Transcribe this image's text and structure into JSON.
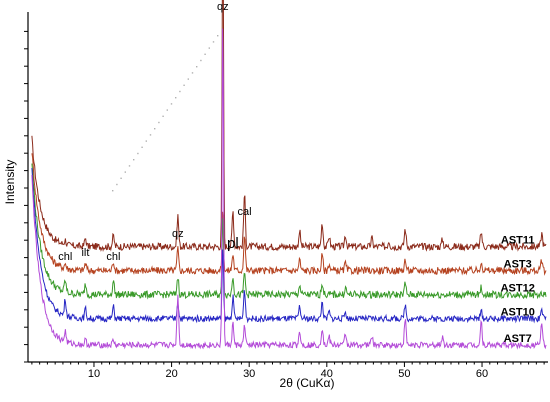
{
  "chart_data": {
    "type": "line",
    "title": "",
    "xlabel": "2θ (CuKα)",
    "ylabel": "Intensity",
    "xlim": [
      1.5,
      68.5
    ],
    "x_ticks": [
      10,
      20,
      30,
      40,
      50,
      60
    ],
    "y_ticks_labeled": false,
    "grid": false,
    "legend": "none; series names printed at right end of each trace",
    "y_units": "relative intensity (stacked traces, offset per sample)",
    "series": [
      {
        "name": "AST11",
        "color": "#8b2a1a",
        "baseline": 92,
        "noise": 6,
        "low_angle_rise": 90,
        "peaks": [
          [
            6.3,
            4
          ],
          [
            8.9,
            7
          ],
          [
            12.5,
            9
          ],
          [
            20.8,
            26
          ],
          [
            26.6,
            280
          ],
          [
            27.9,
            30
          ],
          [
            29.4,
            44
          ],
          [
            36.5,
            13
          ],
          [
            39.4,
            20
          ],
          [
            40.3,
            9
          ],
          [
            42.4,
            10
          ],
          [
            45.8,
            7
          ],
          [
            48.0,
            5
          ],
          [
            50.1,
            15
          ],
          [
            54.9,
            6
          ],
          [
            59.9,
            12
          ],
          [
            67.7,
            11
          ]
        ]
      },
      {
        "name": "AST3",
        "color": "#b5421f",
        "baseline": 72,
        "noise": 6,
        "low_angle_rise": 100,
        "peaks": [
          [
            6.3,
            4
          ],
          [
            8.9,
            6
          ],
          [
            12.5,
            8
          ],
          [
            20.8,
            18
          ],
          [
            26.6,
            52
          ],
          [
            27.9,
            14
          ],
          [
            29.4,
            30
          ],
          [
            36.5,
            9
          ],
          [
            39.4,
            13
          ],
          [
            40.3,
            6
          ],
          [
            42.4,
            6
          ],
          [
            50.1,
            9
          ],
          [
            59.9,
            8
          ],
          [
            67.7,
            9
          ]
        ]
      },
      {
        "name": "AST12",
        "color": "#3a9a2a",
        "baseline": 52,
        "noise": 6,
        "low_angle_rise": 110,
        "peaks": [
          [
            6.3,
            10
          ],
          [
            8.9,
            9
          ],
          [
            12.5,
            12
          ],
          [
            20.8,
            15
          ],
          [
            26.6,
            70
          ],
          [
            27.9,
            16
          ],
          [
            29.4,
            18
          ],
          [
            36.5,
            8
          ],
          [
            39.4,
            10
          ],
          [
            42.4,
            6
          ],
          [
            50.1,
            9
          ],
          [
            59.9,
            6
          ]
        ]
      },
      {
        "name": "AST10",
        "color": "#2626c4",
        "baseline": 32,
        "noise": 5,
        "low_angle_rise": 125,
        "peaks": [
          [
            6.3,
            14
          ],
          [
            8.9,
            8
          ],
          [
            12.5,
            10
          ],
          [
            20.8,
            14
          ],
          [
            26.6,
            60
          ],
          [
            27.9,
            18
          ],
          [
            29.4,
            24
          ],
          [
            36.5,
            10
          ],
          [
            39.4,
            14
          ],
          [
            40.3,
            6
          ],
          [
            42.4,
            6
          ],
          [
            50.1,
            12
          ],
          [
            59.9,
            6
          ],
          [
            67.7,
            7
          ]
        ]
      },
      {
        "name": "AST7",
        "color": "#b34bd8",
        "baseline": 10,
        "noise": 5,
        "low_angle_rise": 140,
        "peaks": [
          [
            6.3,
            9
          ],
          [
            8.9,
            4
          ],
          [
            12.5,
            4
          ],
          [
            20.8,
            42
          ],
          [
            26.6,
            280
          ],
          [
            27.9,
            18
          ],
          [
            29.4,
            16
          ],
          [
            36.5,
            12
          ],
          [
            39.4,
            15
          ],
          [
            40.3,
            7
          ],
          [
            42.4,
            10
          ],
          [
            45.8,
            8
          ],
          [
            50.1,
            22
          ],
          [
            54.9,
            7
          ],
          [
            59.9,
            20
          ],
          [
            67.7,
            20
          ]
        ]
      }
    ],
    "annotations": [
      {
        "text": "chl",
        "x": 6.3,
        "size": "small"
      },
      {
        "text": "ilt",
        "x": 8.9,
        "size": "small"
      },
      {
        "text": "chl",
        "x": 12.5,
        "size": "small"
      },
      {
        "text": "qz",
        "x": 20.8,
        "size": "small"
      },
      {
        "text": "qz",
        "x": 26.6,
        "size": "small"
      },
      {
        "text": "pl",
        "x": 27.9,
        "size": "large"
      },
      {
        "text": "cal",
        "x": 29.4,
        "size": "small"
      }
    ]
  }
}
